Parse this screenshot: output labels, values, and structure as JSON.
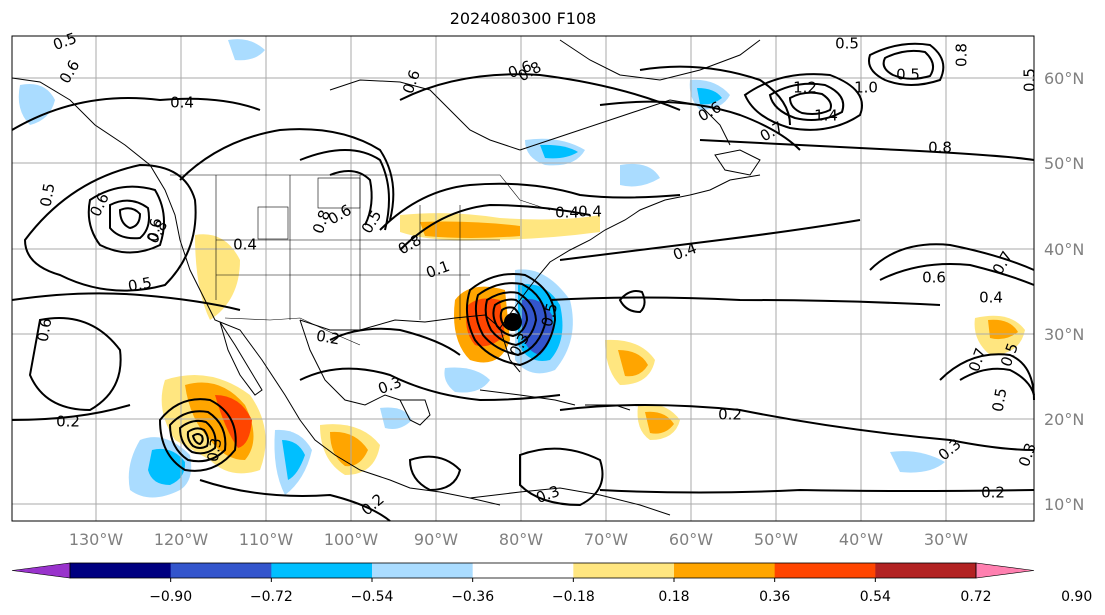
{
  "title": "2024080300 F108",
  "lon_labels": [
    "130°W",
    "120°W",
    "110°W",
    "100°W",
    "90°W",
    "80°W",
    "70°W",
    "60°W",
    "50°W",
    "40°W",
    "30°W"
  ],
  "lat_labels": [
    "60°N",
    "50°N",
    "40°N",
    "30°N",
    "20°N",
    "10°N"
  ],
  "contour_labels": [
    "0.5",
    "0.6",
    "0.4",
    "0.6",
    "0.5",
    "0.4",
    "0.8",
    "0.5",
    "0.6",
    "0.8",
    "0.5",
    "0.2",
    "0.3",
    "0.1",
    "0.2",
    "0.3",
    "0.5",
    "0.3",
    "0.2",
    "0.3",
    "0.6",
    "0.6",
    "0.8",
    "0.6",
    "0.5",
    "0.8",
    "0.5",
    "1.0",
    "1.2",
    "1.4",
    "0.7",
    "0.8",
    "0.4",
    "0.6",
    "0.4",
    "0.4",
    "0.7",
    "0.5",
    "0.3",
    "0.2",
    "0.3",
    "0.6",
    "0.8",
    "0.6",
    "0.4",
    "0.2",
    "0.7",
    "0.5",
    "0.5"
  ],
  "colorbar": {
    "ticks": [
      "−0.90",
      "−0.72",
      "−0.54",
      "−0.36",
      "−0.18",
      "0.18",
      "0.36",
      "0.54",
      "0.72",
      "0.90"
    ],
    "colors": [
      "#9933cc",
      "#000080",
      "#3355cc",
      "#00bfff",
      "#aadcff",
      "#ffffff",
      "#ffe680",
      "#ffa500",
      "#ff4500",
      "#b22222",
      "#ff80b0"
    ]
  },
  "colors": {
    "neg_strong": "#3355cc",
    "neg_mid": "#00bfff",
    "neg_light": "#aadcff",
    "pos_light": "#ffe680",
    "pos_mid": "#ffa500",
    "pos_strong": "#ff4500",
    "pos_darker": "#b22222"
  }
}
